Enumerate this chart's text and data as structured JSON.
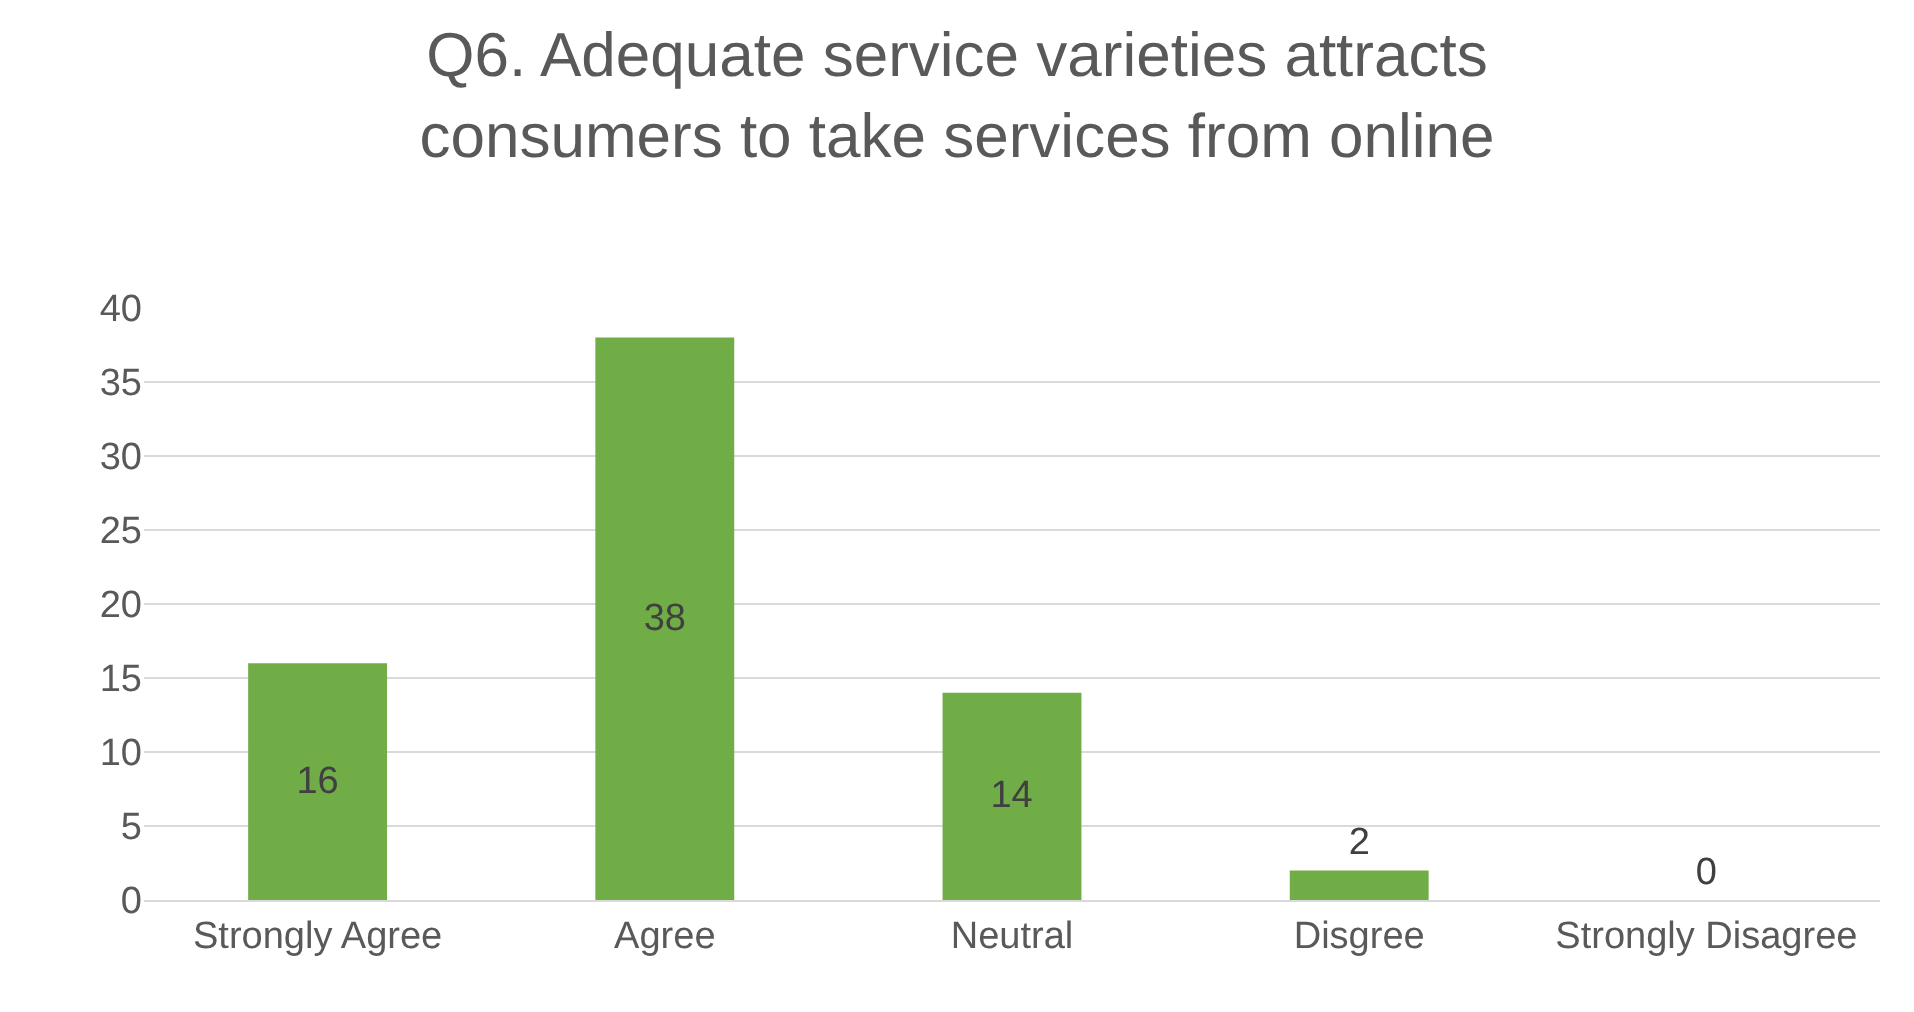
{
  "chart_data": {
    "type": "bar",
    "title": "Q6. Adequate service varieties attracts consumers to take services from online",
    "categories": [
      "Strongly Agree",
      "Agree",
      "Neutral",
      "Disgree",
      "Strongly Disagree"
    ],
    "values": [
      16,
      38,
      14,
      2,
      0
    ],
    "color": "#70ad47",
    "data_labels": true,
    "ylim": [
      0,
      40
    ],
    "yticks": [
      0,
      5,
      10,
      15,
      20,
      25,
      30,
      35,
      40
    ],
    "grid": "y"
  }
}
